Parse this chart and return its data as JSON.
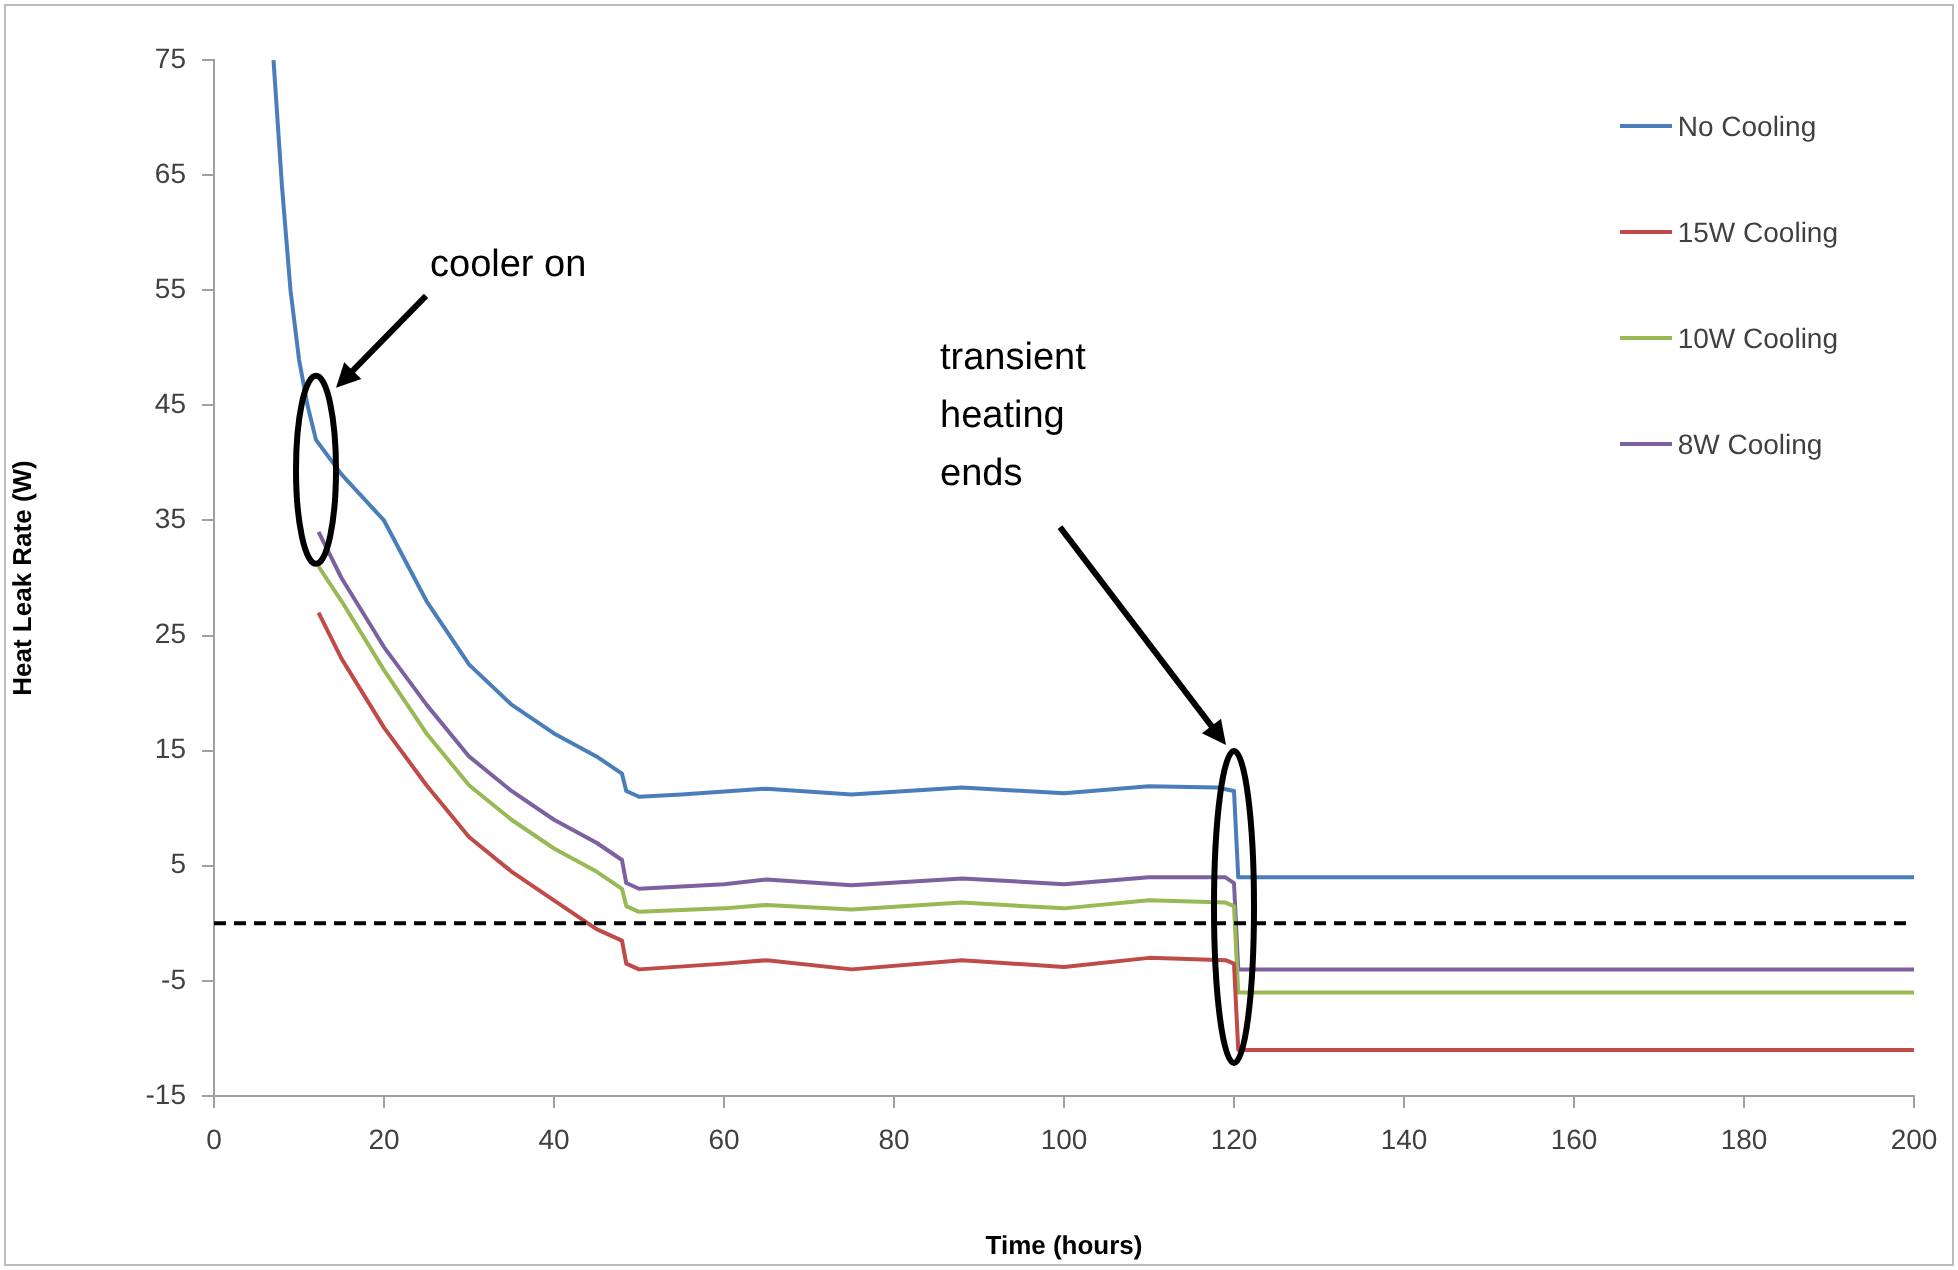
{
  "chart_data": {
    "type": "line",
    "xlabel": "Time (hours)",
    "ylabel": "Heat Leak Rate (W)",
    "xlim": [
      0,
      200
    ],
    "xticks": [
      0,
      20,
      40,
      60,
      80,
      100,
      120,
      140,
      160,
      180,
      200
    ],
    "ylim": [
      -15,
      75
    ],
    "yticks": [
      -15,
      -5,
      5,
      15,
      25,
      35,
      45,
      55,
      65,
      75
    ],
    "grid": false,
    "legend": "top right",
    "marker": "none",
    "line_style": "solid",
    "ref_lines": [
      {
        "axis": "y",
        "value": 0,
        "color": "#000000",
        "line_style": "dashed"
      }
    ],
    "annotations": [
      "cooler on",
      "transient heating ends"
    ],
    "series": [
      {
        "name": "No Cooling",
        "color": "#4a7ebb",
        "x": [
          7,
          8,
          9,
          10,
          11,
          12,
          15,
          20,
          25,
          30,
          35,
          40,
          45,
          48,
          48.5,
          50,
          55,
          65,
          75,
          88,
          100,
          110,
          118,
          120,
          120.5,
          200
        ],
        "values": [
          75,
          64,
          55,
          49,
          45,
          42,
          39,
          35,
          28,
          22.5,
          19,
          16.5,
          14.5,
          13,
          11.5,
          11,
          11.2,
          11.7,
          11.2,
          11.8,
          11.3,
          11.9,
          11.8,
          11.5,
          4,
          4
        ]
      },
      {
        "name": "15W Cooling",
        "color": "#be4b48",
        "x": [
          12.3,
          15,
          20,
          25,
          30,
          35,
          40,
          45,
          48,
          48.5,
          50,
          60,
          65,
          75,
          88,
          100,
          110,
          119,
          120,
          120.5,
          200
        ],
        "values": [
          27,
          23,
          17,
          12,
          7.5,
          4.5,
          2,
          -0.5,
          -1.5,
          -3.5,
          -4,
          -3.5,
          -3.2,
          -4,
          -3.2,
          -3.8,
          -3,
          -3.2,
          -3.5,
          -11,
          -11
        ]
      },
      {
        "name": "10W Cooling",
        "color": "#98b954",
        "x": [
          12.3,
          15,
          20,
          25,
          30,
          35,
          40,
          45,
          48,
          48.5,
          50,
          60,
          65,
          75,
          88,
          100,
          110,
          119,
          120,
          120.5,
          200
        ],
        "values": [
          31,
          28,
          22,
          16.5,
          12,
          9,
          6.5,
          4.5,
          3,
          1.5,
          1,
          1.3,
          1.6,
          1.2,
          1.8,
          1.3,
          2,
          1.8,
          1.5,
          -6,
          -6
        ]
      },
      {
        "name": "8W Cooling",
        "color": "#7d60a0",
        "x": [
          12.3,
          15,
          20,
          25,
          30,
          35,
          40,
          45,
          48,
          48.5,
          50,
          60,
          65,
          75,
          88,
          100,
          110,
          119,
          120,
          120.5,
          200
        ],
        "values": [
          34,
          30,
          24,
          19,
          14.5,
          11.5,
          9,
          7,
          5.5,
          3.5,
          3,
          3.4,
          3.8,
          3.3,
          3.9,
          3.4,
          4,
          4,
          3.5,
          -4,
          -4
        ]
      }
    ]
  }
}
